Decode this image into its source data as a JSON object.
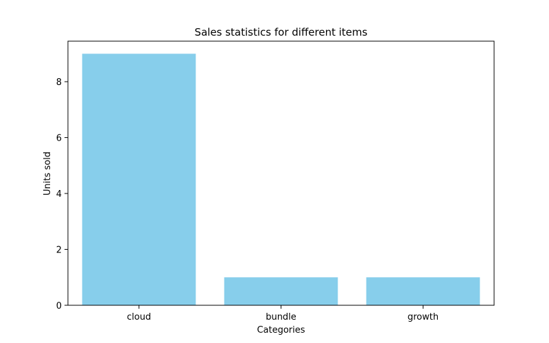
{
  "chart_data": {
    "type": "bar",
    "title": "Sales statistics for different items",
    "xlabel": "Categories",
    "ylabel": "Units sold",
    "categories": [
      "cloud",
      "bundle",
      "growth"
    ],
    "values": [
      9,
      1,
      1
    ],
    "ylim": [
      0,
      9.45
    ],
    "yticks": [
      0,
      2,
      4,
      6,
      8
    ],
    "grid": false,
    "bar_color": "#87CEEB"
  }
}
